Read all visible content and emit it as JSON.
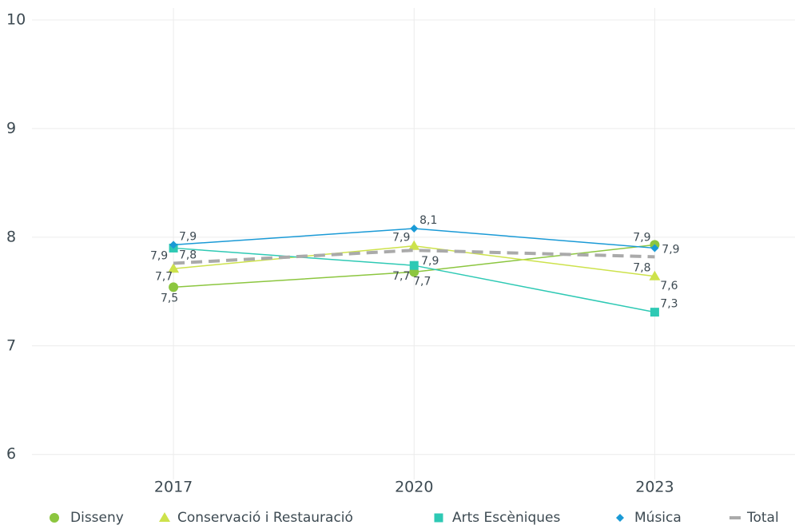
{
  "chart_data": {
    "type": "line",
    "categories": [
      "2017",
      "2020",
      "2023"
    ],
    "series": [
      {
        "name": "Disseny",
        "color": "#8cc63f",
        "values": [
          7.54,
          7.68,
          7.93
        ],
        "value_labels": [
          "7,5",
          "7,7",
          "7,9"
        ]
      },
      {
        "name": "Conservació i Restauració",
        "color": "#cde24b",
        "values": [
          7.71,
          7.92,
          7.64
        ],
        "value_labels": [
          "7,7",
          "7,9",
          "7,6"
        ]
      },
      {
        "name": "Arts Escèniques",
        "color": "#2ec9b4",
        "values": [
          7.9,
          7.74,
          7.31
        ],
        "value_labels": [
          "7,9",
          "7,7",
          "7,3"
        ]
      },
      {
        "name": "Música",
        "color": "#1a9ad6",
        "values": [
          7.93,
          8.08,
          7.9
        ],
        "value_labels": [
          "7,9",
          "8,1",
          "7,9"
        ]
      },
      {
        "name": "Total",
        "color": "#aaaaaa",
        "dashed": true,
        "values": [
          7.76,
          7.88,
          7.82
        ],
        "value_labels": [
          "7,8",
          "7,9",
          "7,8"
        ]
      }
    ],
    "ylim": [
      5.77,
      10.11
    ],
    "yticks": [
      6,
      7,
      8,
      9,
      10
    ],
    "grid": true,
    "legend": "bottom"
  }
}
